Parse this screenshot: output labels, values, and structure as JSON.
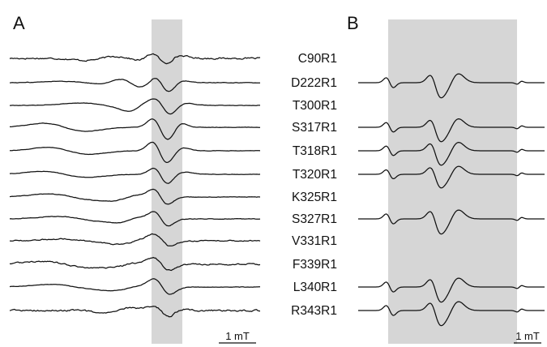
{
  "panels": {
    "a_label": "A",
    "b_label": "B"
  },
  "labels": [
    "C90R1",
    "D222R1",
    "T300R1",
    "S317R1",
    "T318R1",
    "T320R1",
    "K325R1",
    "S327R1",
    "V331R1",
    "F339R1",
    "L340R1",
    "R343R1"
  ],
  "scale_bars": {
    "a_text": "1 mT",
    "b_text": "1 mT"
  },
  "colors": {
    "trace": "#111111",
    "shade": "#d6d6d6"
  },
  "traces_a": [
    {
      "name": "C90R1",
      "noise": 1.6,
      "comps": [
        [
          -75,
          20,
          -4
        ],
        [
          -18,
          12,
          -5
        ],
        [
          -3,
          9,
          9
        ],
        [
          10,
          12,
          -6
        ]
      ]
    },
    {
      "name": "D222R1",
      "noise": 0.6,
      "comps": [
        [
          -95,
          28,
          3
        ],
        [
          -38,
          14,
          9
        ],
        [
          0,
          9,
          14
        ],
        [
          16,
          11,
          -4
        ]
      ]
    },
    {
      "name": "T300R1",
      "noise": 0.4,
      "comps": [
        [
          -70,
          30,
          5
        ],
        [
          -30,
          12,
          -7
        ],
        [
          2,
          10,
          16
        ],
        [
          12,
          14,
          -6
        ]
      ]
    },
    {
      "name": "S317R1",
      "noise": 0.4,
      "comps": [
        [
          -120,
          26,
          8
        ],
        [
          -3,
          9,
          17
        ],
        [
          17,
          8,
          -8
        ]
      ]
    },
    {
      "name": "T318R1",
      "noise": 0.4,
      "comps": [
        [
          -115,
          26,
          7
        ],
        [
          -3,
          9,
          18
        ],
        [
          17,
          10,
          -6
        ]
      ]
    },
    {
      "name": "T320R1",
      "noise": 0.4,
      "comps": [
        [
          -120,
          28,
          6
        ],
        [
          -1,
          9,
          16
        ],
        [
          12,
          14,
          -5
        ]
      ]
    },
    {
      "name": "K325R1",
      "noise": 0.6,
      "comps": [
        [
          -110,
          30,
          6
        ],
        [
          -45,
          16,
          -4
        ],
        [
          -2,
          9,
          15
        ]
      ]
    },
    {
      "name": "S327R1",
      "noise": 0.6,
      "comps": [
        [
          -100,
          30,
          5
        ],
        [
          -40,
          14,
          -4
        ],
        [
          -1,
          9,
          14
        ]
      ]
    },
    {
      "name": "V331R1",
      "noise": 1.1,
      "comps": [
        [
          -95,
          30,
          4
        ],
        [
          -35,
          16,
          -4
        ],
        [
          0,
          10,
          11
        ]
      ]
    },
    {
      "name": "F339R1",
      "noise": 1.4,
      "comps": [
        [
          -120,
          30,
          6
        ],
        [
          -45,
          18,
          -3
        ],
        [
          -1,
          10,
          12
        ]
      ]
    },
    {
      "name": "L340R1",
      "noise": 0.5,
      "comps": [
        [
          -105,
          32,
          5
        ],
        [
          -40,
          18,
          -3
        ],
        [
          0,
          10,
          15
        ]
      ]
    },
    {
      "name": "R343R1",
      "noise": 1.7,
      "comps": [
        [
          -55,
          16,
          -5
        ],
        [
          0,
          10,
          10
        ],
        [
          14,
          10,
          -4
        ]
      ]
    }
  ],
  "traces_b": [
    {
      "name": "D222R1",
      "scale": 1.0
    },
    {
      "name": "S317R1",
      "scale": 0.95
    },
    {
      "name": "T318R1",
      "scale": 0.95
    },
    {
      "name": "T320R1",
      "scale": 0.9
    },
    {
      "name": "S327R1",
      "scale": 1.0
    },
    {
      "name": "L340R1",
      "scale": 1.0
    },
    {
      "name": "R343R1",
      "scale": 1.0
    }
  ]
}
